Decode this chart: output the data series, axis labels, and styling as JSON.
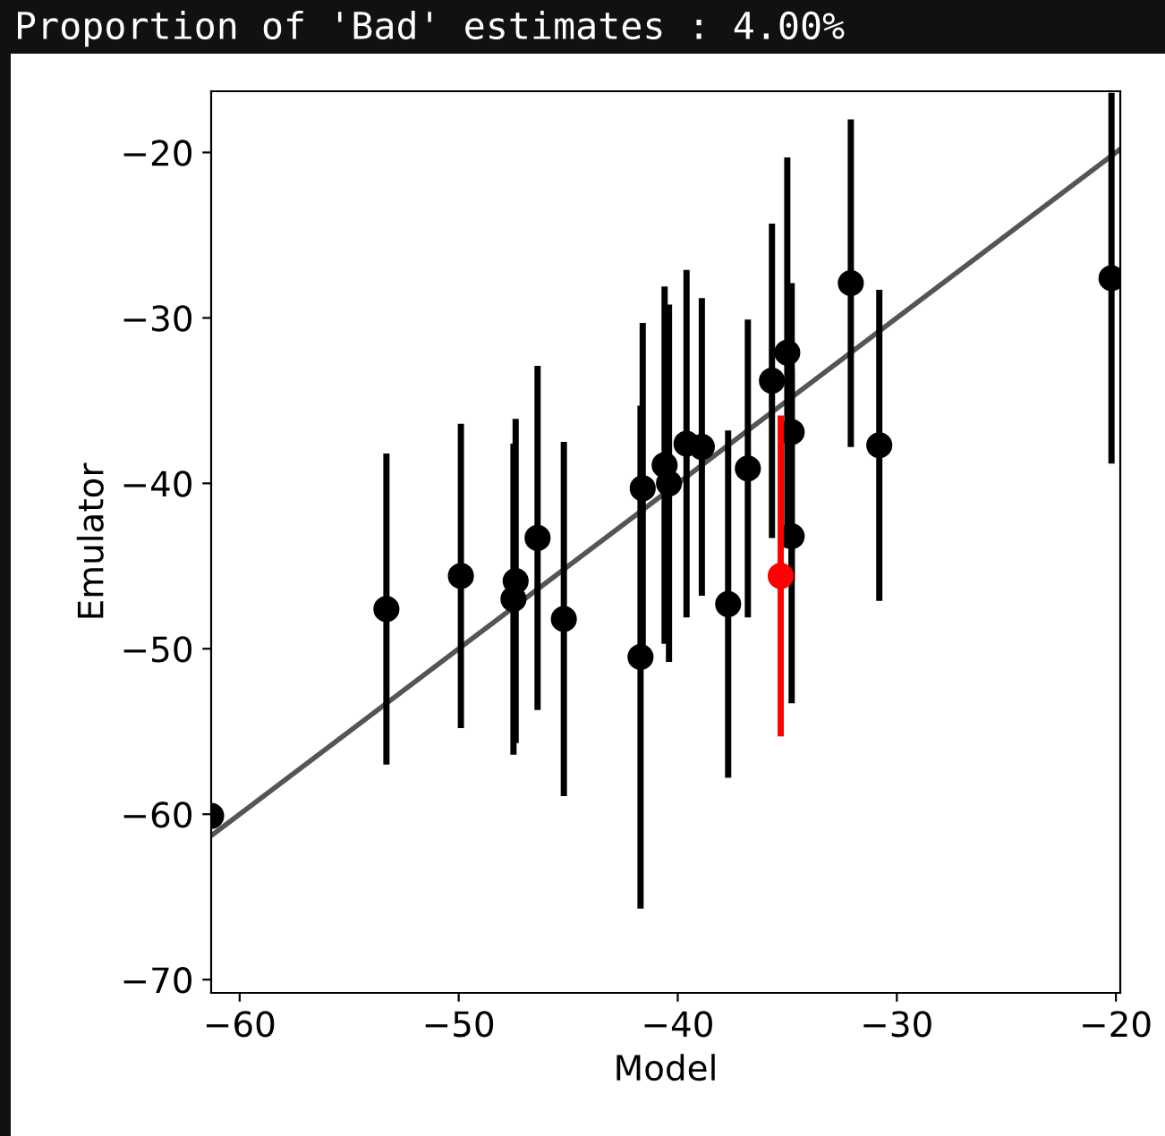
{
  "chart_data": {
    "type": "scatter",
    "title": "Proportion of 'Bad' estimates : 4.00%",
    "xlabel": "Model",
    "ylabel": "Emulator",
    "xlim": [
      -61.3,
      -19.8
    ],
    "ylim": [
      -70.8,
      -16.3
    ],
    "xticks": [
      {
        "value": -60,
        "label": "−60"
      },
      {
        "value": -50,
        "label": "−50"
      },
      {
        "value": -40,
        "label": "−40"
      },
      {
        "value": -30,
        "label": "−30"
      },
      {
        "value": -20,
        "label": "−20"
      }
    ],
    "yticks": [
      {
        "value": -70,
        "label": "−70"
      },
      {
        "value": -60,
        "label": "−60"
      },
      {
        "value": -50,
        "label": "−50"
      },
      {
        "value": -40,
        "label": "−40"
      },
      {
        "value": -30,
        "label": "−30"
      },
      {
        "value": -20,
        "label": "−20"
      }
    ],
    "grid": false,
    "marker": "circle",
    "series": [
      {
        "type": "line",
        "marker": "none",
        "color": "#555555",
        "x": [
          -61.3,
          -19.8
        ],
        "values": [
          -61.3,
          -19.8
        ]
      },
      {
        "color": "#000000",
        "x": [
          -61.3,
          -53.3,
          -49.9,
          -47.4,
          -47.5,
          -46.4,
          -45.2,
          -41.7,
          -41.6,
          -40.6,
          -40.4,
          -39.6,
          -38.9,
          -36.8,
          -37.7,
          -35.7,
          -35.0,
          -34.8,
          -34.8,
          -35.3,
          -32.1,
          -30.8,
          -20.2
        ],
        "values": [
          -60.1,
          -47.6,
          -45.6,
          -45.9,
          -47.0,
          -43.3,
          -48.2,
          -50.5,
          -40.3,
          -38.9,
          -40.0,
          -37.6,
          -37.8,
          -39.1,
          -47.3,
          -33.8,
          -32.1,
          -36.9,
          -43.2,
          -45.6,
          -27.9,
          -37.7,
          -27.6
        ],
        "errors": [
          null,
          9.4,
          9.2,
          9.8,
          9.4,
          10.4,
          10.7,
          15.2,
          10,
          10.8,
          10.8,
          10.5,
          9,
          9,
          10.5,
          9.5,
          11.8,
          9,
          10.1,
          9.7,
          9.9,
          9.4,
          11.2
        ],
        "colors": [
          "#000000",
          "#000000",
          "#000000",
          "#000000",
          "#000000",
          "#000000",
          "#000000",
          "#000000",
          "#000000",
          "#000000",
          "#000000",
          "#000000",
          "#000000",
          "#000000",
          "#000000",
          "#000000",
          "#000000",
          "#000000",
          "#000000",
          "#ff0000",
          "#000000",
          "#000000",
          "#000000"
        ]
      }
    ]
  }
}
